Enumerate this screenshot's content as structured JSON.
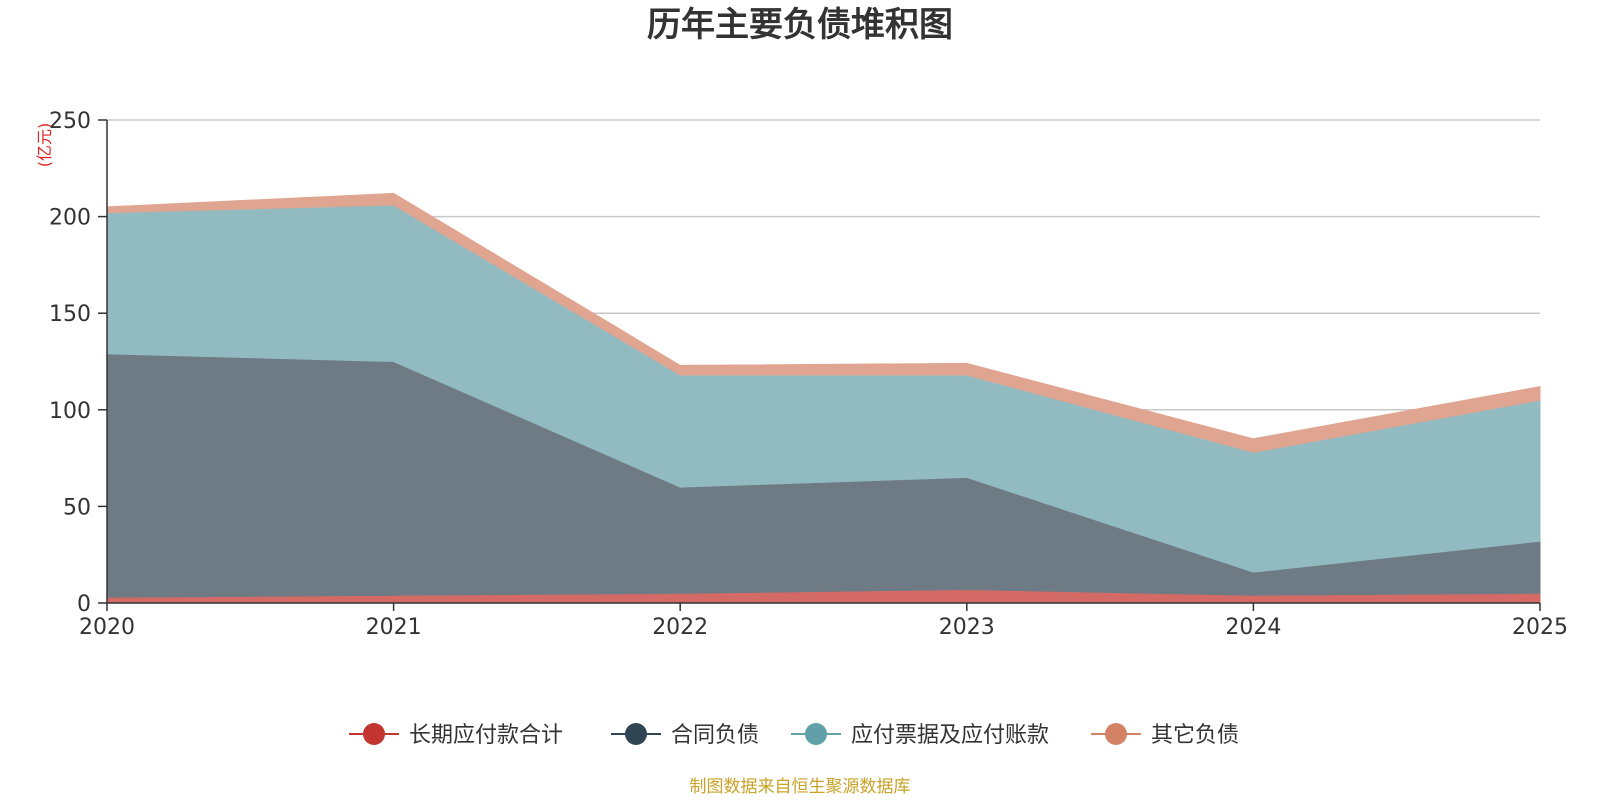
{
  "chart_data": {
    "type": "area",
    "stacked": true,
    "title": "历年主要负债堆积图",
    "unit_label": "(亿元)",
    "x": [
      "2020",
      "2021",
      "2022",
      "2023",
      "2024",
      "2025"
    ],
    "ylim": [
      0,
      250
    ],
    "yticks": [
      "0",
      "50",
      "100",
      "150",
      "200",
      "250"
    ],
    "grid": true,
    "legend_position": "bottom",
    "series": [
      {
        "name": "长期应付款合计",
        "color": "#c23531",
        "fill": "#d46a66",
        "values": [
          3,
          4,
          5,
          7,
          4,
          5
        ]
      },
      {
        "name": "合同负债",
        "color": "#2f4554",
        "fill": "#6e7b85",
        "values": [
          126,
          121,
          55,
          58,
          12,
          27
        ]
      },
      {
        "name": "应付票据及应付账款",
        "color": "#61a0a8",
        "fill": "#92bbc1",
        "values": [
          73,
          81,
          58,
          53,
          62,
          73
        ]
      },
      {
        "name": "其它负债",
        "color": "#d48265",
        "fill": "#e0a591",
        "values": [
          3,
          6,
          5,
          6,
          7,
          7
        ]
      }
    ],
    "source_note": "制图数据来自恒生聚源数据库"
  }
}
